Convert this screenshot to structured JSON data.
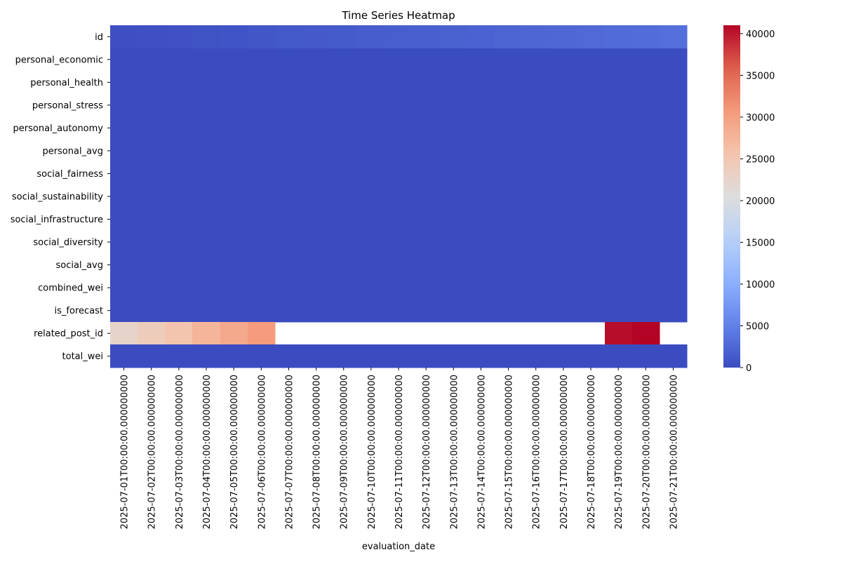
{
  "chart_data": {
    "type": "heatmap",
    "title": "Time Series Heatmap",
    "xlabel": "evaluation_date",
    "ylabel": "",
    "colormap": "coolwarm",
    "colorbar": {
      "min": 0,
      "max": 41000,
      "ticks": [
        0,
        5000,
        10000,
        15000,
        20000,
        25000,
        30000,
        35000,
        40000
      ]
    },
    "x": [
      "2025-07-01T00:00:00.000000000",
      "2025-07-02T00:00:00.000000000",
      "2025-07-03T00:00:00.000000000",
      "2025-07-04T00:00:00.000000000",
      "2025-07-05T00:00:00.000000000",
      "2025-07-06T00:00:00.000000000",
      "2025-07-07T00:00:00.000000000",
      "2025-07-08T00:00:00.000000000",
      "2025-07-09T00:00:00.000000000",
      "2025-07-10T00:00:00.000000000",
      "2025-07-11T00:00:00.000000000",
      "2025-07-12T00:00:00.000000000",
      "2025-07-13T00:00:00.000000000",
      "2025-07-14T00:00:00.000000000",
      "2025-07-15T00:00:00.000000000",
      "2025-07-16T00:00:00.000000000",
      "2025-07-17T00:00:00.000000000",
      "2025-07-18T00:00:00.000000000",
      "2025-07-19T00:00:00.000000000",
      "2025-07-20T00:00:00.000000000",
      "2025-07-21T00:00:00.000000000"
    ],
    "y": [
      "id",
      "personal_economic",
      "personal_health",
      "personal_stress",
      "personal_autonomy",
      "personal_avg",
      "social_fairness",
      "social_sustainability",
      "social_infrastructure",
      "social_diversity",
      "social_avg",
      "combined_wei",
      "is_forecast",
      "related_post_id",
      "total_wei"
    ],
    "values": [
      [
        300,
        400,
        500,
        650,
        800,
        950,
        1100,
        1250,
        1400,
        1550,
        1700,
        1850,
        2000,
        2150,
        2300,
        2450,
        2600,
        2750,
        2900,
        3050,
        3250
      ],
      [
        0,
        0,
        0,
        0,
        0,
        0,
        0,
        0,
        0,
        0,
        0,
        0,
        0,
        0,
        0,
        0,
        0,
        0,
        0,
        0,
        0
      ],
      [
        0,
        0,
        0,
        0,
        0,
        0,
        0,
        0,
        0,
        0,
        0,
        0,
        0,
        0,
        0,
        0,
        0,
        0,
        0,
        0,
        0
      ],
      [
        0,
        0,
        0,
        0,
        0,
        0,
        0,
        0,
        0,
        0,
        0,
        0,
        0,
        0,
        0,
        0,
        0,
        0,
        0,
        0,
        0
      ],
      [
        0,
        0,
        0,
        0,
        0,
        0,
        0,
        0,
        0,
        0,
        0,
        0,
        0,
        0,
        0,
        0,
        0,
        0,
        0,
        0,
        0
      ],
      [
        0,
        0,
        0,
        0,
        0,
        0,
        0,
        0,
        0,
        0,
        0,
        0,
        0,
        0,
        0,
        0,
        0,
        0,
        0,
        0,
        0
      ],
      [
        0,
        0,
        0,
        0,
        0,
        0,
        0,
        0,
        0,
        0,
        0,
        0,
        0,
        0,
        0,
        0,
        0,
        0,
        0,
        0,
        0
      ],
      [
        0,
        0,
        0,
        0,
        0,
        0,
        0,
        0,
        0,
        0,
        0,
        0,
        0,
        0,
        0,
        0,
        0,
        0,
        0,
        0,
        0
      ],
      [
        0,
        0,
        0,
        0,
        0,
        0,
        0,
        0,
        0,
        0,
        0,
        0,
        0,
        0,
        0,
        0,
        0,
        0,
        0,
        0,
        0
      ],
      [
        0,
        0,
        0,
        0,
        0,
        0,
        0,
        0,
        0,
        0,
        0,
        0,
        0,
        0,
        0,
        0,
        0,
        0,
        0,
        0,
        0
      ],
      [
        0,
        0,
        0,
        0,
        0,
        0,
        0,
        0,
        0,
        0,
        0,
        0,
        0,
        0,
        0,
        0,
        0,
        0,
        0,
        0,
        0
      ],
      [
        0,
        0,
        0,
        0,
        0,
        0,
        0,
        0,
        0,
        0,
        0,
        0,
        0,
        0,
        0,
        0,
        0,
        0,
        0,
        0,
        0
      ],
      [
        0,
        0,
        0,
        0,
        0,
        0,
        0,
        0,
        0,
        0,
        0,
        0,
        0,
        0,
        0,
        0,
        0,
        0,
        0,
        0,
        0
      ],
      [
        22500,
        24000,
        25500,
        27500,
        29000,
        30500,
        null,
        null,
        null,
        null,
        null,
        null,
        null,
        null,
        null,
        null,
        null,
        null,
        40500,
        41000,
        null
      ],
      [
        0,
        0,
        0,
        0,
        0,
        0,
        0,
        0,
        0,
        0,
        0,
        0,
        0,
        0,
        0,
        0,
        0,
        0,
        0,
        0,
        0
      ]
    ]
  }
}
